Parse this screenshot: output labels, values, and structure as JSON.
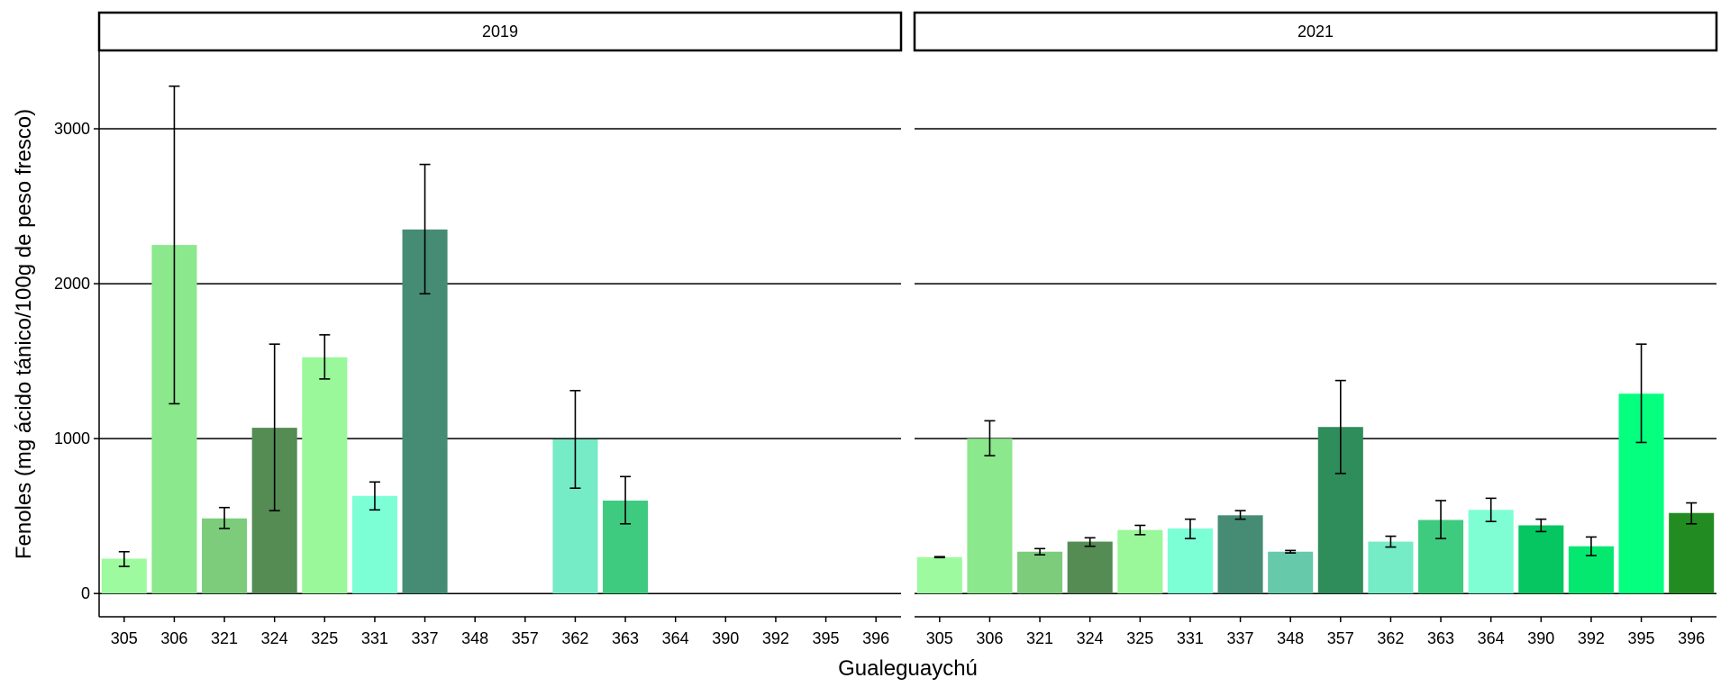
{
  "chart_data": {
    "type": "bar",
    "xlabel": "Gualeguaychú",
    "ylabel": "Fenoles (mg ácido tánico/100g de peso fresco)",
    "ylim": [
      -150,
      3500
    ],
    "yticks": [
      "0",
      "1000",
      "2000",
      "3000"
    ],
    "grid": "horizontal major",
    "legend": "none",
    "categories": [
      "305",
      "306",
      "321",
      "324",
      "325",
      "331",
      "337",
      "348",
      "357",
      "362",
      "363",
      "364",
      "390",
      "392",
      "395",
      "396"
    ],
    "colors": [
      "#9efa9e",
      "#8ce88c",
      "#7ccc7c",
      "#548c54",
      "#9af79a",
      "#7dffd5",
      "#468c74",
      "#66c9aa",
      "#2f8c5b",
      "#75ebc6",
      "#3fcb7f",
      "#7ffed4",
      "#05c660",
      "#05e870",
      "#05ff7f",
      "#228c22"
    ],
    "panels": [
      {
        "label": "2019",
        "values": [
          225,
          2250,
          485,
          1070,
          1525,
          630,
          2350,
          null,
          null,
          995,
          600,
          null,
          null,
          null,
          null,
          null
        ],
        "err_low": [
          175,
          1225,
          420,
          535,
          1385,
          540,
          1935,
          null,
          null,
          680,
          450,
          null,
          null,
          null,
          null,
          null
        ],
        "err_high": [
          270,
          3275,
          555,
          1610,
          1670,
          720,
          2770,
          null,
          null,
          1310,
          755,
          null,
          null,
          null,
          null,
          null
        ]
      },
      {
        "label": "2021",
        "values": [
          235,
          1000,
          270,
          335,
          410,
          420,
          505,
          270,
          1075,
          335,
          475,
          540,
          440,
          305,
          1290,
          520
        ],
        "err_low": [
          232,
          890,
          250,
          305,
          380,
          355,
          480,
          262,
          775,
          300,
          355,
          465,
          400,
          245,
          975,
          450
        ],
        "err_high": [
          238,
          1115,
          290,
          360,
          440,
          480,
          535,
          278,
          1375,
          370,
          600,
          615,
          480,
          365,
          1610,
          585
        ]
      }
    ]
  }
}
